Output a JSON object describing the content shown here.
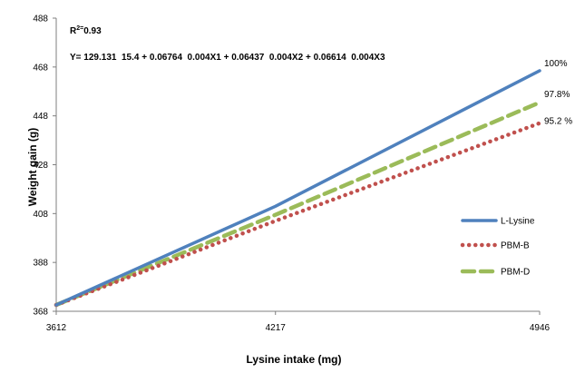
{
  "chart_data": {
    "type": "line",
    "x": [
      3612,
      4217,
      4946
    ],
    "x_ticks": [
      "3612",
      "4217",
      "4946"
    ],
    "y_ticks": [
      "368",
      "388",
      "408",
      "428",
      "448",
      "468",
      "488"
    ],
    "xlim": [
      3612,
      4946
    ],
    "ylim": [
      368,
      488
    ],
    "xlabel": "Lysine intake (mg)",
    "ylabel": "Weight gain (g)",
    "grid": false,
    "legend_position": "right",
    "annotation_r2": {
      "label": "R",
      "sup": "2=",
      "value": "0.93"
    },
    "annotation_equation": "Y= 129.131  15.4 + 0.06764  0.004X1 + 0.06437  0.004X2 + 0.06614  0.004X3",
    "series": [
      {
        "name": "L-Lysine",
        "values": [
          370.6,
          411.0,
          466.5
        ],
        "end_label": "100%",
        "color": "#4f81bd",
        "style": "solid"
      },
      {
        "name": "PBM-B",
        "values": [
          370.6,
          405.0,
          445.0
        ],
        "end_label": "95.2 %",
        "color": "#c0504d",
        "style": "dotted"
      },
      {
        "name": "PBM-D",
        "values": [
          370.6,
          407.5,
          453.5
        ],
        "end_label": "97.8%",
        "color": "#9bbb59",
        "style": "dashed"
      }
    ]
  }
}
